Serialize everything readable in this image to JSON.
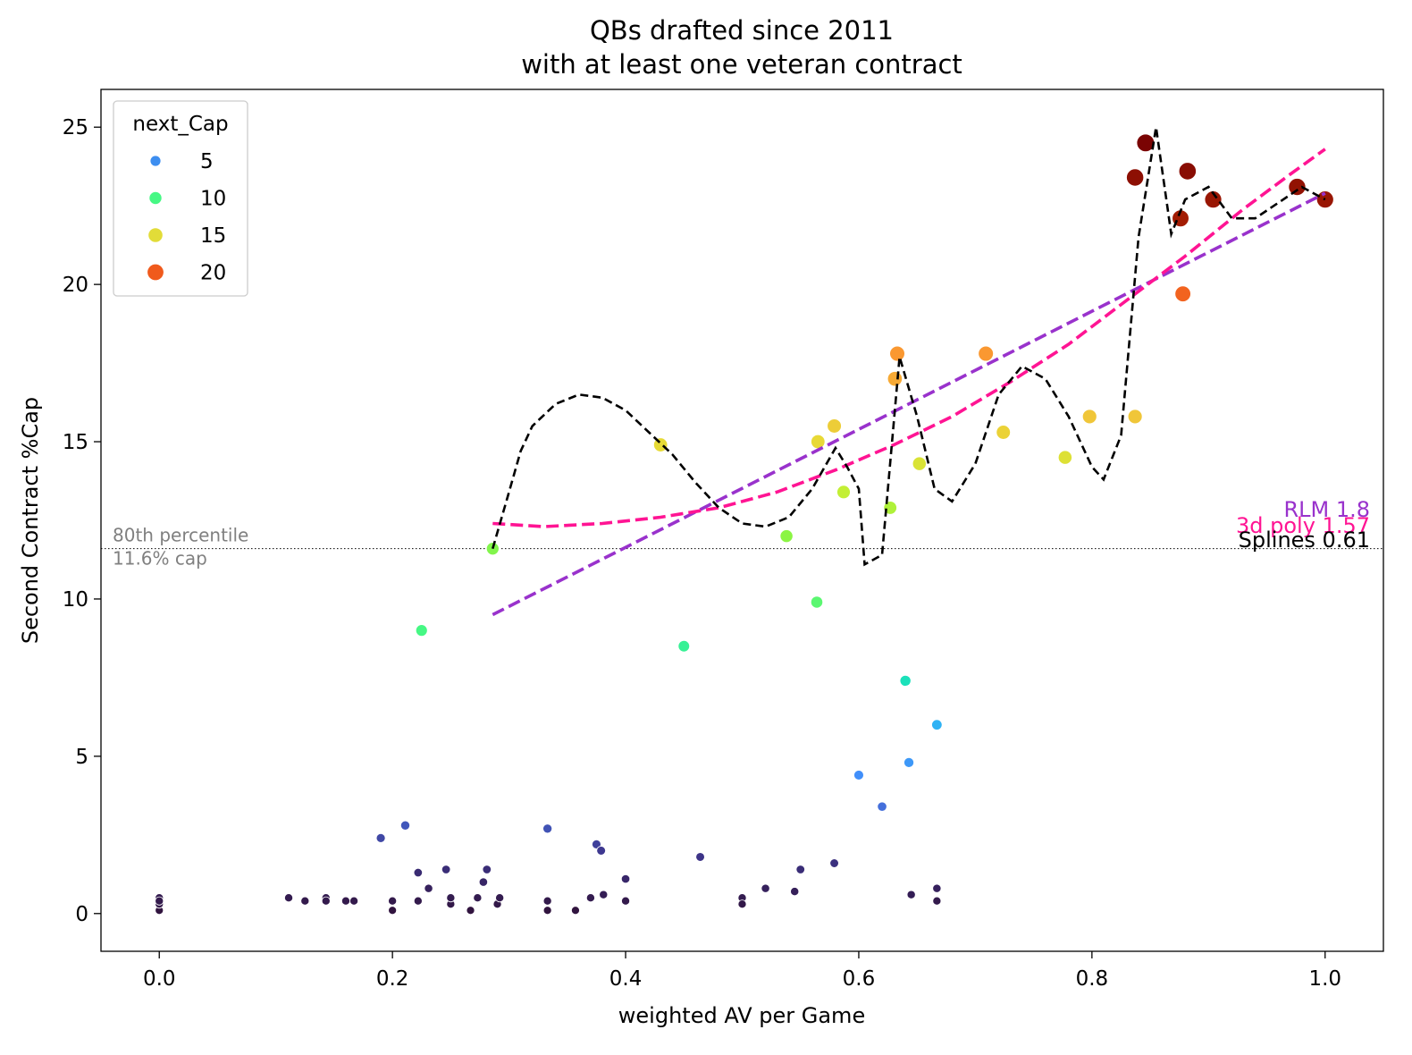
{
  "chart_data": {
    "type": "scatter",
    "title": "QBs drafted since 2011\nwith at least one veteran contract",
    "xlabel": "weighted AV per Game",
    "ylabel": "Second Contract %Cap",
    "xlim": [
      -0.05,
      1.05
    ],
    "ylim": [
      -1.2,
      26.2
    ],
    "xticks": [
      0.0,
      0.2,
      0.4,
      0.6,
      0.8,
      1.0
    ],
    "xtick_labels": [
      "0.0",
      "0.2",
      "0.4",
      "0.6",
      "0.8",
      "1.0"
    ],
    "yticks": [
      0,
      5,
      10,
      15,
      20,
      25
    ],
    "ytick_labels": [
      "0",
      "5",
      "10",
      "15",
      "20",
      "25"
    ],
    "grid": false,
    "legend": {
      "title": "next_Cap",
      "placement": "upper-left",
      "entries": [
        {
          "label": "5",
          "color": "#3d8ef0",
          "size": 5
        },
        {
          "label": "10",
          "color": "#46f884",
          "size": 10
        },
        {
          "label": "15",
          "color": "#e2dc38",
          "size": 15
        },
        {
          "label": "20",
          "color": "#f05a1c",
          "size": 20
        }
      ]
    },
    "color_scale": {
      "name": "turbo-like",
      "stops": [
        {
          "v": 0,
          "color": "#30123b"
        },
        {
          "v": 2,
          "color": "#3e3890"
        },
        {
          "v": 4,
          "color": "#4686fb"
        },
        {
          "v": 6,
          "color": "#2fb2f4"
        },
        {
          "v": 7.5,
          "color": "#1ae4b6"
        },
        {
          "v": 9,
          "color": "#46f884"
        },
        {
          "v": 12,
          "color": "#8bf543"
        },
        {
          "v": 13.5,
          "color": "#c7ef34"
        },
        {
          "v": 15,
          "color": "#e8d936"
        },
        {
          "v": 16,
          "color": "#f2c13a"
        },
        {
          "v": 18,
          "color": "#fb9330"
        },
        {
          "v": 20,
          "color": "#f05a1c"
        },
        {
          "v": 22,
          "color": "#a51d03"
        },
        {
          "v": 24.5,
          "color": "#7a0403"
        }
      ]
    },
    "points": [
      {
        "x": 0.0,
        "y": 0.1
      },
      {
        "x": 0.0,
        "y": 0.3
      },
      {
        "x": 0.0,
        "y": 0.5
      },
      {
        "x": 0.0,
        "y": 0.4
      },
      {
        "x": 0.111,
        "y": 0.5
      },
      {
        "x": 0.125,
        "y": 0.4
      },
      {
        "x": 0.143,
        "y": 0.5
      },
      {
        "x": 0.143,
        "y": 0.4
      },
      {
        "x": 0.16,
        "y": 0.4
      },
      {
        "x": 0.167,
        "y": 0.4
      },
      {
        "x": 0.19,
        "y": 2.4
      },
      {
        "x": 0.2,
        "y": 0.4
      },
      {
        "x": 0.2,
        "y": 0.1
      },
      {
        "x": 0.211,
        "y": 2.8
      },
      {
        "x": 0.222,
        "y": 1.3
      },
      {
        "x": 0.222,
        "y": 0.4
      },
      {
        "x": 0.231,
        "y": 0.8
      },
      {
        "x": 0.246,
        "y": 1.4
      },
      {
        "x": 0.25,
        "y": 0.3
      },
      {
        "x": 0.25,
        "y": 0.5
      },
      {
        "x": 0.267,
        "y": 0.1
      },
      {
        "x": 0.273,
        "y": 0.5
      },
      {
        "x": 0.278,
        "y": 1.0
      },
      {
        "x": 0.281,
        "y": 1.4
      },
      {
        "x": 0.29,
        "y": 0.3
      },
      {
        "x": 0.292,
        "y": 0.5
      },
      {
        "x": 0.333,
        "y": 2.7
      },
      {
        "x": 0.333,
        "y": 0.4
      },
      {
        "x": 0.333,
        "y": 0.1
      },
      {
        "x": 0.357,
        "y": 0.1
      },
      {
        "x": 0.37,
        "y": 0.5
      },
      {
        "x": 0.375,
        "y": 2.2
      },
      {
        "x": 0.379,
        "y": 2.0
      },
      {
        "x": 0.381,
        "y": 0.6
      },
      {
        "x": 0.4,
        "y": 1.1
      },
      {
        "x": 0.4,
        "y": 0.4
      },
      {
        "x": 0.464,
        "y": 1.8
      },
      {
        "x": 0.5,
        "y": 0.5
      },
      {
        "x": 0.5,
        "y": 0.3
      },
      {
        "x": 0.52,
        "y": 0.8
      },
      {
        "x": 0.545,
        "y": 0.7
      },
      {
        "x": 0.55,
        "y": 1.4
      },
      {
        "x": 0.579,
        "y": 1.6
      },
      {
        "x": 0.6,
        "y": 4.4
      },
      {
        "x": 0.62,
        "y": 3.4
      },
      {
        "x": 0.643,
        "y": 4.8
      },
      {
        "x": 0.645,
        "y": 0.6
      },
      {
        "x": 0.667,
        "y": 0.8
      },
      {
        "x": 0.667,
        "y": 0.4
      },
      {
        "x": 0.667,
        "y": 6.0
      },
      {
        "x": 0.64,
        "y": 7.4
      },
      {
        "x": 0.225,
        "y": 9.0
      },
      {
        "x": 0.45,
        "y": 8.5
      },
      {
        "x": 0.564,
        "y": 9.9
      },
      {
        "x": 0.286,
        "y": 11.6
      },
      {
        "x": 0.538,
        "y": 12.0
      },
      {
        "x": 0.627,
        "y": 12.9
      },
      {
        "x": 0.587,
        "y": 13.4
      },
      {
        "x": 0.652,
        "y": 14.3
      },
      {
        "x": 0.43,
        "y": 14.9
      },
      {
        "x": 0.565,
        "y": 15.0
      },
      {
        "x": 0.579,
        "y": 15.5
      },
      {
        "x": 0.724,
        "y": 15.3
      },
      {
        "x": 0.777,
        "y": 14.5
      },
      {
        "x": 0.798,
        "y": 15.8
      },
      {
        "x": 0.837,
        "y": 15.8
      },
      {
        "x": 0.631,
        "y": 17.0
      },
      {
        "x": 0.633,
        "y": 17.8
      },
      {
        "x": 0.709,
        "y": 17.8
      },
      {
        "x": 0.878,
        "y": 19.7
      },
      {
        "x": 0.837,
        "y": 23.4
      },
      {
        "x": 0.846,
        "y": 24.5
      },
      {
        "x": 0.876,
        "y": 22.1
      },
      {
        "x": 0.882,
        "y": 23.6
      },
      {
        "x": 0.904,
        "y": 22.7
      },
      {
        "x": 0.976,
        "y": 23.1
      },
      {
        "x": 1.0,
        "y": 22.7
      }
    ],
    "threshold": {
      "y": 11.6,
      "label_line1": "80th percentile",
      "label_line2": "11.6% cap"
    },
    "fits": [
      {
        "name": "RLM",
        "label": "RLM 1.8",
        "color": "#9932cc",
        "x": [
          0.286,
          1.0
        ],
        "y": [
          9.5,
          22.9
        ]
      },
      {
        "name": "3d poly",
        "label": "3d poly 1.57",
        "color": "#ff1493",
        "x": [
          0.286,
          0.33,
          0.38,
          0.43,
          0.48,
          0.53,
          0.58,
          0.63,
          0.68,
          0.73,
          0.78,
          0.83,
          0.88,
          0.93,
          0.97,
          1.0
        ],
        "y": [
          12.4,
          12.3,
          12.4,
          12.6,
          12.9,
          13.4,
          14.1,
          14.9,
          15.8,
          16.9,
          18.1,
          19.5,
          20.9,
          22.4,
          23.5,
          24.3
        ]
      },
      {
        "name": "Splines",
        "label": "Splines 0.61",
        "color": "#000000",
        "x": [
          0.286,
          0.3,
          0.31,
          0.32,
          0.34,
          0.36,
          0.38,
          0.4,
          0.42,
          0.44,
          0.46,
          0.48,
          0.5,
          0.52,
          0.54,
          0.56,
          0.58,
          0.59,
          0.6,
          0.605,
          0.62,
          0.635,
          0.65,
          0.665,
          0.68,
          0.7,
          0.72,
          0.74,
          0.76,
          0.78,
          0.8,
          0.81,
          0.825,
          0.84,
          0.855,
          0.868,
          0.88,
          0.9,
          0.92,
          0.94,
          0.96,
          0.98,
          1.0
        ],
        "y": [
          11.6,
          13.4,
          14.7,
          15.5,
          16.2,
          16.5,
          16.4,
          16.0,
          15.3,
          14.6,
          13.7,
          12.9,
          12.4,
          12.3,
          12.6,
          13.5,
          14.8,
          14.2,
          13.5,
          11.1,
          11.4,
          17.7,
          15.8,
          13.5,
          13.1,
          14.3,
          16.5,
          17.4,
          17.0,
          15.8,
          14.2,
          13.8,
          15.2,
          21.5,
          25.0,
          21.6,
          22.7,
          23.1,
          22.1,
          22.1,
          22.6,
          23.1,
          22.7
        ]
      }
    ]
  }
}
